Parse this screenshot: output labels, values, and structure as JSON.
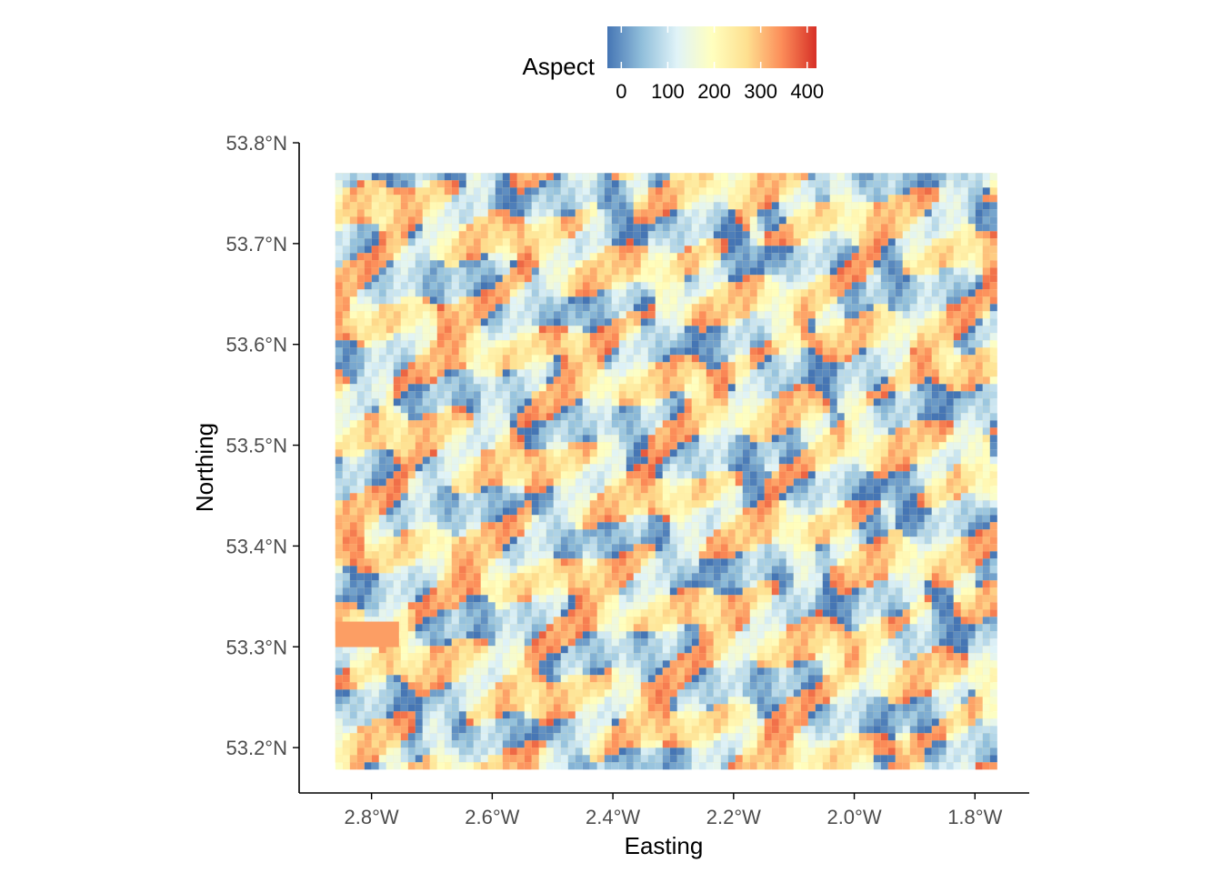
{
  "chart_data": {
    "type": "heatmap",
    "title": "",
    "xlabel": "Easting",
    "ylabel": "Northing",
    "x_ticks": [
      {
        "value": -2.8,
        "label": "2.8°W"
      },
      {
        "value": -2.6,
        "label": "2.6°W"
      },
      {
        "value": -2.4,
        "label": "2.4°W"
      },
      {
        "value": -2.2,
        "label": "2.2°W"
      },
      {
        "value": -2.0,
        "label": "2.0°W"
      },
      {
        "value": -1.8,
        "label": "1.8°W"
      }
    ],
    "y_ticks": [
      {
        "value": 53.8,
        "label": "53.8°N"
      },
      {
        "value": 53.7,
        "label": "53.7°N"
      },
      {
        "value": 53.6,
        "label": "53.6°N"
      },
      {
        "value": 53.5,
        "label": "53.5°N"
      },
      {
        "value": 53.4,
        "label": "53.4°N"
      },
      {
        "value": 53.3,
        "label": "53.3°N"
      },
      {
        "value": 53.2,
        "label": "53.2°N"
      }
    ],
    "xlim": [
      -2.92,
      -1.71
    ],
    "ylim": [
      53.155,
      53.8
    ],
    "raster_extent": {
      "x": [
        -2.86,
        -1.77
      ],
      "y": [
        53.185,
        53.77
      ]
    },
    "legend": {
      "title": "Aspect",
      "position": "top",
      "range": [
        -30,
        420
      ],
      "ticks": [
        {
          "value": 0,
          "label": "0"
        },
        {
          "value": 100,
          "label": "100"
        },
        {
          "value": 200,
          "label": "200"
        },
        {
          "value": 300,
          "label": "300"
        },
        {
          "value": 400,
          "label": "400"
        }
      ],
      "colors": [
        "#4575b4",
        "#91bfdb",
        "#e0f3f8",
        "#ffffbf",
        "#fee090",
        "#fc8d59",
        "#d73027"
      ]
    }
  }
}
